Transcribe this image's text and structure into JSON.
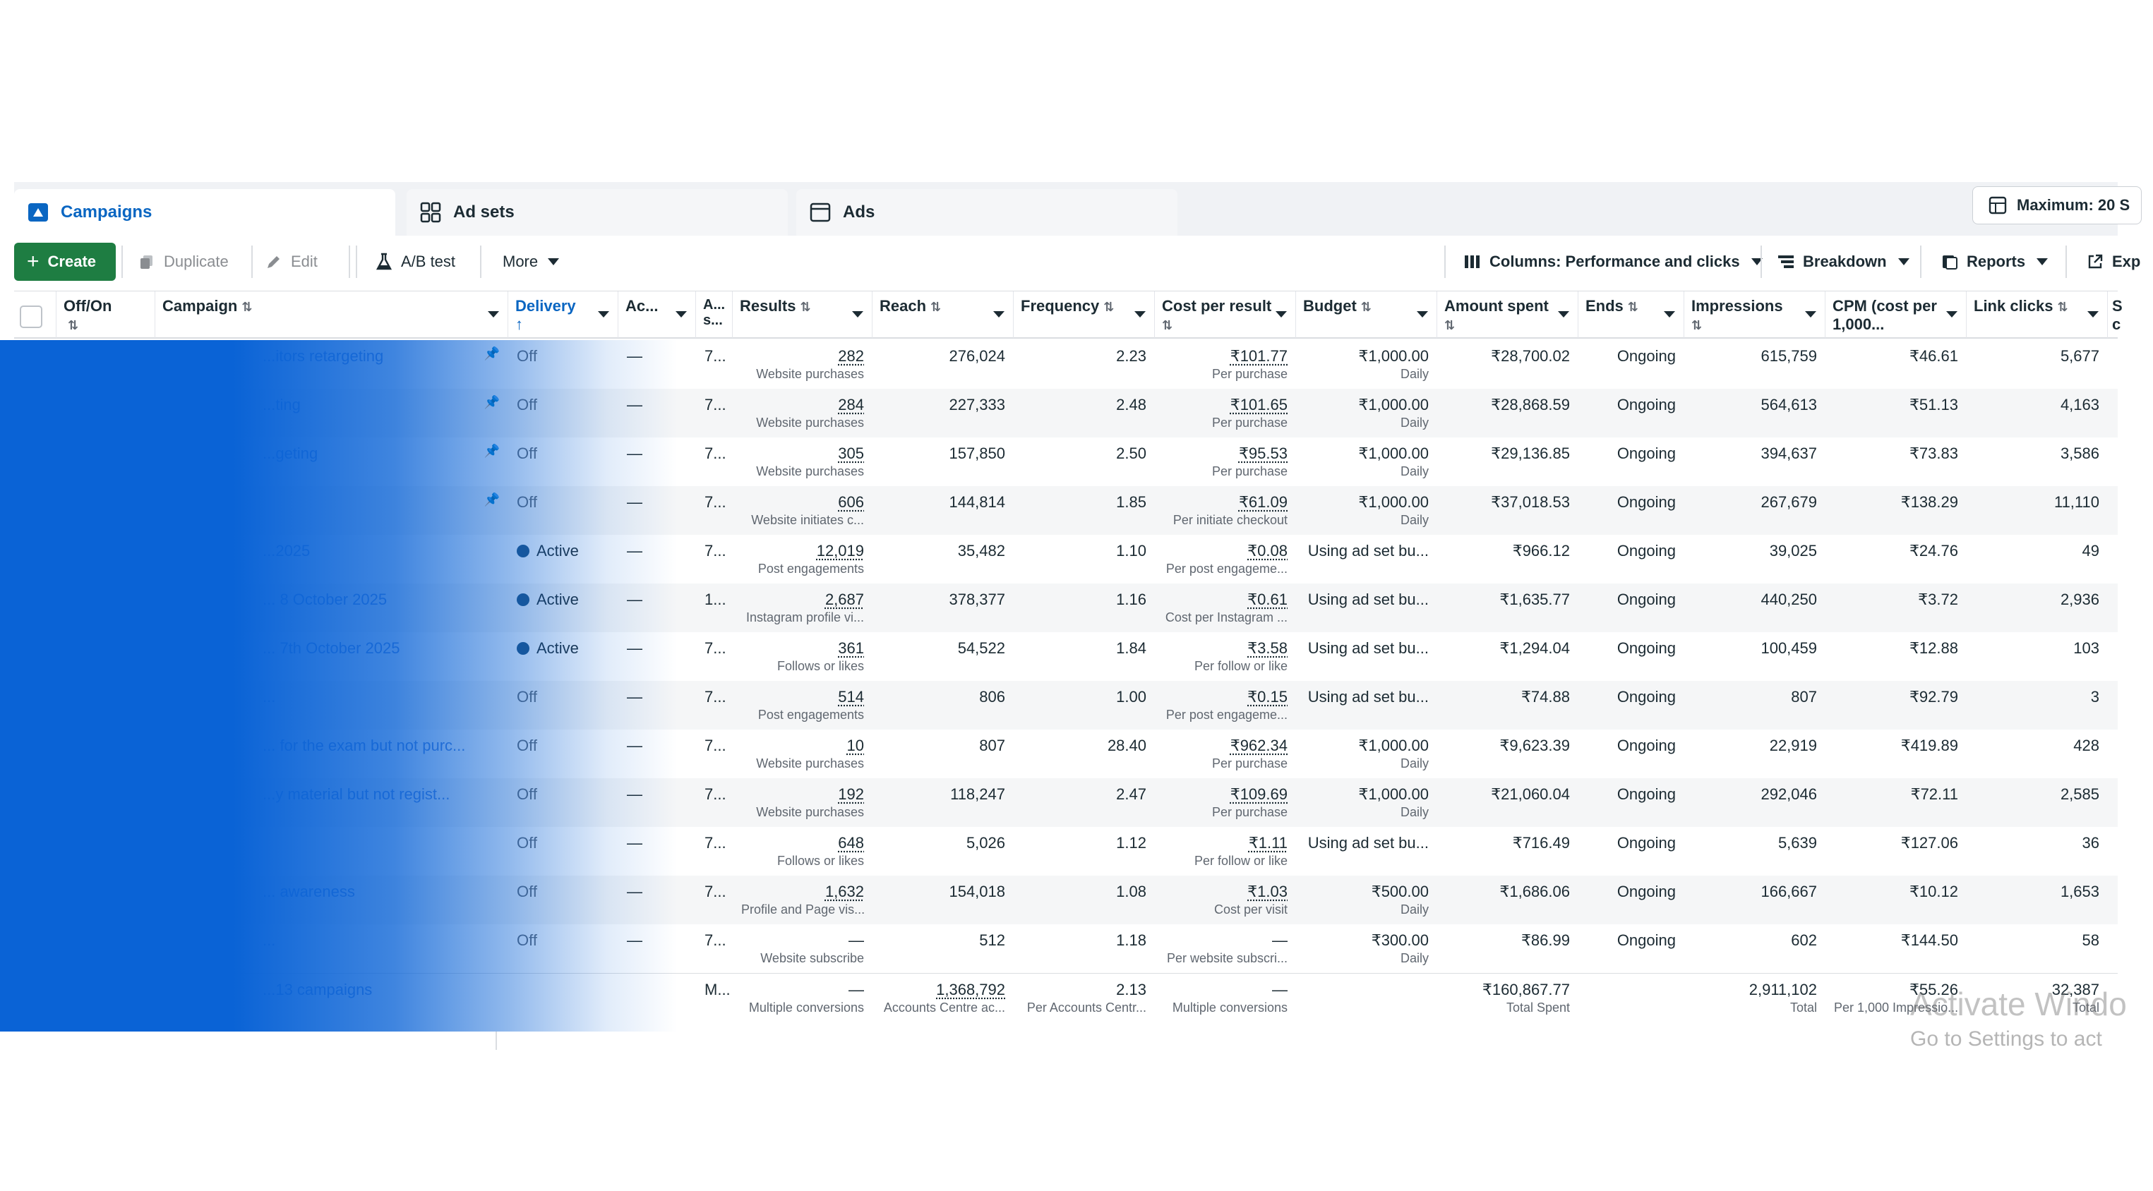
{
  "tabs": {
    "campaigns": "Campaigns",
    "adsets": "Ad sets",
    "ads": "Ads",
    "maximum": "Maximum: 20 S"
  },
  "toolbar": {
    "create": "Create",
    "duplicate": "Duplicate",
    "edit": "Edit",
    "ab_test": "A/B test",
    "more": "More",
    "columns": "Columns: Performance and clicks",
    "breakdown": "Breakdown",
    "reports": "Reports",
    "export": "Exp"
  },
  "headers": {
    "offon": "Off/On",
    "campaign": "Campaign",
    "delivery": "Delivery",
    "ac": "Ac...",
    "as": "A... s...",
    "results": "Results",
    "reach": "Reach",
    "frequency": "Frequency",
    "cost_per_result": "Cost per result",
    "budget": "Budget",
    "amount_spent": "Amount spent",
    "ends": "Ends",
    "impressions": "Impressions",
    "cpm": "CPM (cost per 1,000...",
    "link_clicks": "Link clicks",
    "extra": "S c"
  },
  "rows": [
    {
      "campaign": "...itors retargeting",
      "pinned": true,
      "delivery": "Off",
      "active": false,
      "ac": "—",
      "as": "7...",
      "results": "282",
      "results_sub": "Website purchases",
      "reach": "276,024",
      "frequency": "2.23",
      "cpr": "₹101.77",
      "cpr_sub": "Per purchase",
      "budget": "₹1,000.00",
      "budget_sub": "Daily",
      "spent": "₹28,700.02",
      "ends": "Ongoing",
      "impressions": "615,759",
      "cpm": "₹46.61",
      "clicks": "5,677"
    },
    {
      "campaign": "...ting",
      "pinned": true,
      "delivery": "Off",
      "active": false,
      "ac": "—",
      "as": "7...",
      "results": "284",
      "results_sub": "Website purchases",
      "reach": "227,333",
      "frequency": "2.48",
      "cpr": "₹101.65",
      "cpr_sub": "Per purchase",
      "budget": "₹1,000.00",
      "budget_sub": "Daily",
      "spent": "₹28,868.59",
      "ends": "Ongoing",
      "impressions": "564,613",
      "cpm": "₹51.13",
      "clicks": "4,163"
    },
    {
      "campaign": "...geting",
      "pinned": true,
      "delivery": "Off",
      "active": false,
      "ac": "—",
      "as": "7...",
      "results": "305",
      "results_sub": "Website purchases",
      "reach": "157,850",
      "frequency": "2.50",
      "cpr": "₹95.53",
      "cpr_sub": "Per purchase",
      "budget": "₹1,000.00",
      "budget_sub": "Daily",
      "spent": "₹29,136.85",
      "ends": "Ongoing",
      "impressions": "394,637",
      "cpm": "₹73.83",
      "clicks": "3,586"
    },
    {
      "campaign": "",
      "pinned": true,
      "delivery": "Off",
      "active": false,
      "ac": "—",
      "as": "7...",
      "results": "606",
      "results_sub": "Website initiates c...",
      "reach": "144,814",
      "frequency": "1.85",
      "cpr": "₹61.09",
      "cpr_sub": "Per initiate checkout",
      "budget": "₹1,000.00",
      "budget_sub": "Daily",
      "spent": "₹37,018.53",
      "ends": "Ongoing",
      "impressions": "267,679",
      "cpm": "₹138.29",
      "clicks": "11,110"
    },
    {
      "campaign": "...2025",
      "pinned": false,
      "delivery": "Active",
      "active": true,
      "ac": "—",
      "as": "7...",
      "results": "12,019",
      "results_sub": "Post engagements",
      "reach": "35,482",
      "frequency": "1.10",
      "cpr": "₹0.08",
      "cpr_sub": "Per post engageme...",
      "budget": "Using ad set bu...",
      "budget_sub": "",
      "spent": "₹966.12",
      "ends": "Ongoing",
      "impressions": "39,025",
      "cpm": "₹24.76",
      "clicks": "49"
    },
    {
      "campaign": "... 8 October 2025",
      "pinned": false,
      "delivery": "Active",
      "active": true,
      "ac": "—",
      "as": "1...",
      "results": "2,687",
      "results_sub": "Instagram profile vi...",
      "reach": "378,377",
      "frequency": "1.16",
      "cpr": "₹0.61",
      "cpr_sub": "Cost per Instagram ...",
      "budget": "Using ad set bu...",
      "budget_sub": "",
      "spent": "₹1,635.77",
      "ends": "Ongoing",
      "impressions": "440,250",
      "cpm": "₹3.72",
      "clicks": "2,936"
    },
    {
      "campaign": "... 7th October 2025",
      "pinned": false,
      "delivery": "Active",
      "active": true,
      "ac": "—",
      "as": "7...",
      "results": "361",
      "results_sub": "Follows or likes",
      "reach": "54,522",
      "frequency": "1.84",
      "cpr": "₹3.58",
      "cpr_sub": "Per follow or like",
      "budget": "Using ad set bu...",
      "budget_sub": "",
      "spent": "₹1,294.04",
      "ends": "Ongoing",
      "impressions": "100,459",
      "cpm": "₹12.88",
      "clicks": "103"
    },
    {
      "campaign": "...",
      "pinned": false,
      "delivery": "Off",
      "active": false,
      "ac": "—",
      "as": "7...",
      "results": "514",
      "results_sub": "Post engagements",
      "reach": "806",
      "frequency": "1.00",
      "cpr": "₹0.15",
      "cpr_sub": "Per post engageme...",
      "budget": "Using ad set bu...",
      "budget_sub": "",
      "spent": "₹74.88",
      "ends": "Ongoing",
      "impressions": "807",
      "cpm": "₹92.79",
      "clicks": "3"
    },
    {
      "campaign": "... for the exam but not purc...",
      "pinned": false,
      "delivery": "Off",
      "active": false,
      "ac": "—",
      "as": "7...",
      "results": "10",
      "results_sub": "Website purchases",
      "reach": "807",
      "frequency": "28.40",
      "cpr": "₹962.34",
      "cpr_sub": "Per purchase",
      "budget": "₹1,000.00",
      "budget_sub": "Daily",
      "spent": "₹9,623.39",
      "ends": "Ongoing",
      "impressions": "22,919",
      "cpm": "₹419.89",
      "clicks": "428"
    },
    {
      "campaign": "...y material but not regist...",
      "pinned": false,
      "delivery": "Off",
      "active": false,
      "ac": "—",
      "as": "7...",
      "results": "192",
      "results_sub": "Website purchases",
      "reach": "118,247",
      "frequency": "2.47",
      "cpr": "₹109.69",
      "cpr_sub": "Per purchase",
      "budget": "₹1,000.00",
      "budget_sub": "Daily",
      "spent": "₹21,060.04",
      "ends": "Ongoing",
      "impressions": "292,046",
      "cpm": "₹72.11",
      "clicks": "2,585"
    },
    {
      "campaign": "",
      "pinned": false,
      "delivery": "Off",
      "active": false,
      "ac": "—",
      "as": "7...",
      "results": "648",
      "results_sub": "Follows or likes",
      "reach": "5,026",
      "frequency": "1.12",
      "cpr": "₹1.11",
      "cpr_sub": "Per follow or like",
      "budget": "Using ad set bu...",
      "budget_sub": "",
      "spent": "₹716.49",
      "ends": "Ongoing",
      "impressions": "5,639",
      "cpm": "₹127.06",
      "clicks": "36"
    },
    {
      "campaign": "... awareness",
      "pinned": false,
      "delivery": "Off",
      "active": false,
      "ac": "—",
      "as": "7...",
      "results": "1,632",
      "results_sub": "Profile and Page vis...",
      "reach": "154,018",
      "frequency": "1.08",
      "cpr": "₹1.03",
      "cpr_sub": "Cost per visit",
      "budget": "₹500.00",
      "budget_sub": "Daily",
      "spent": "₹1,686.06",
      "ends": "Ongoing",
      "impressions": "166,667",
      "cpm": "₹10.12",
      "clicks": "1,653"
    },
    {
      "campaign": "...",
      "pinned": false,
      "delivery": "Off",
      "active": false,
      "ac": "—",
      "as": "7...",
      "results": "—",
      "results_sub": "Website subscribe",
      "reach": "512",
      "frequency": "1.18",
      "cpr": "—",
      "cpr_sub": "Per website subscri...",
      "budget": "₹300.00",
      "budget_sub": "Daily",
      "spent": "₹86.99",
      "ends": "Ongoing",
      "impressions": "602",
      "cpm": "₹144.50",
      "clicks": "58"
    }
  ],
  "totals": {
    "label": "...13 campaigns",
    "as": "M...",
    "results": "—",
    "results_sub": "Multiple conversions",
    "reach": "1,368,792",
    "reach_sub": "Accounts Centre ac...",
    "frequency": "2.13",
    "frequency_sub": "Per Accounts Centr...",
    "cpr": "—",
    "cpr_sub": "Multiple conversions",
    "spent": "₹160,867.77",
    "spent_sub": "Total Spent",
    "impressions": "2,911,102",
    "impressions_sub": "Total",
    "cpm": "₹55.26",
    "cpm_sub": "Per 1,000 Impressio...",
    "clicks": "32,387",
    "clicks_sub": "Total"
  },
  "watermark": {
    "line1": "Activate Windo",
    "line2": "Go to Settings to act"
  }
}
